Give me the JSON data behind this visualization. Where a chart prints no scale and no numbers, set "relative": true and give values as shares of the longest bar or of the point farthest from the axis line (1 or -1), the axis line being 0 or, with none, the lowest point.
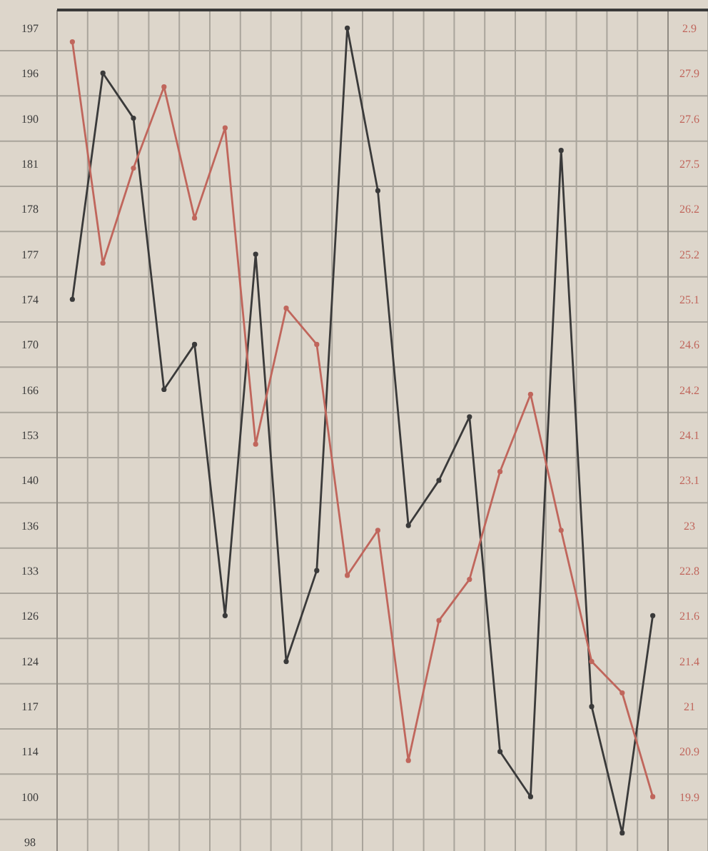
{
  "chart_data": {
    "type": "line",
    "relative": true,
    "categories": [
      null,
      null,
      null,
      null,
      null,
      null,
      null,
      null,
      null,
      null,
      null,
      null,
      null,
      null,
      null,
      null,
      null,
      null,
      null,
      null
    ],
    "series": [
      {
        "color": "#3a3a3a",
        "values": [
          0.663,
          0.944,
          0.888,
          0.551,
          0.607,
          0.27,
          0.719,
          0.213,
          0.326,
          1,
          0.798,
          0.382,
          0.438,
          0.517,
          0.101,
          0.045,
          0.848,
          0.157,
          0,
          0.27
        ]
      },
      {
        "color": "#c0665c",
        "values": [
          0.983,
          0.708,
          0.826,
          0.927,
          0.764,
          0.876,
          0.483,
          0.652,
          0.607,
          0.32,
          0.376,
          0.09,
          0.264,
          0.315,
          0.449,
          0.545,
          0.376,
          0.213,
          0.174,
          0.045
        ]
      }
    ],
    "annotations": [
      "197",
      "196",
      "190",
      "181",
      "178",
      "177",
      "174",
      "170",
      "166",
      "153",
      "140",
      "136",
      "133",
      "126",
      "124",
      "117",
      "114",
      "100",
      "98",
      "2.9",
      "27.9",
      "27.6",
      "27.5",
      "26.2",
      "25.2",
      "25.1",
      "24.6",
      "24.2",
      "24.1",
      "23.1",
      "23",
      "22.8",
      "21.6",
      "21.4",
      "21",
      "20.9",
      "19.9"
    ],
    "grid": true,
    "marker": "circle"
  }
}
